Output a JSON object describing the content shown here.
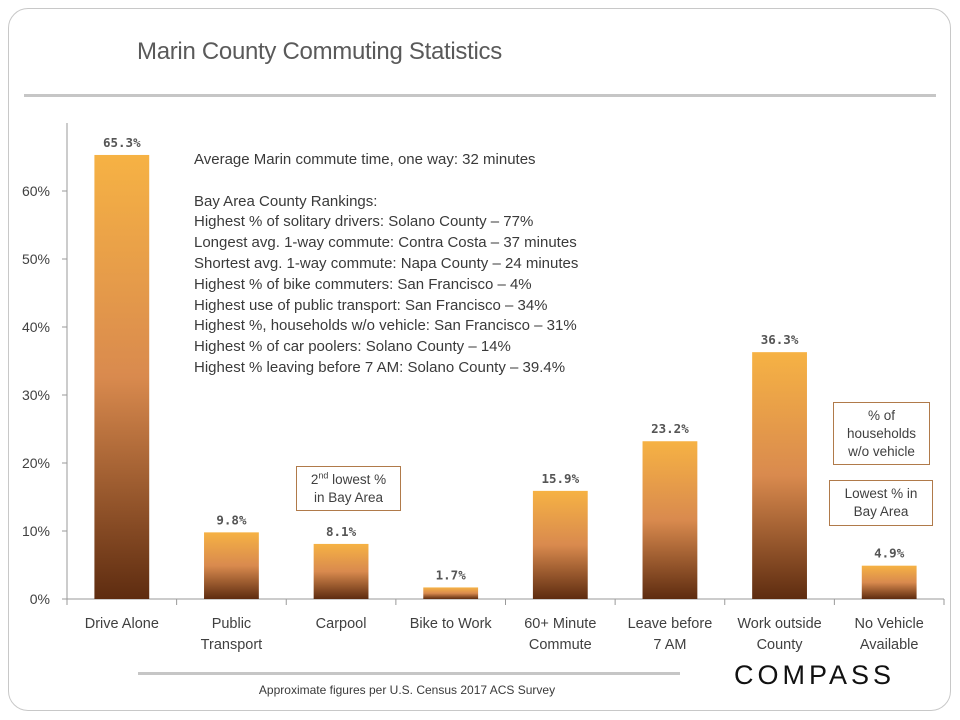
{
  "title": "Marin County Commuting Statistics",
  "chart_data": {
    "type": "bar",
    "categories": [
      [
        "Drive Alone"
      ],
      [
        "Public",
        "Transport"
      ],
      [
        "Carpool"
      ],
      [
        "Bike to Work"
      ],
      [
        "60+ Minute",
        "Commute"
      ],
      [
        "Leave before",
        "7 AM"
      ],
      [
        "Work outside",
        "County"
      ],
      [
        "No Vehicle",
        "Available"
      ]
    ],
    "values": [
      65.3,
      9.8,
      8.1,
      1.7,
      15.9,
      23.2,
      36.3,
      4.9
    ],
    "data_labels": [
      "65.3%",
      "9.8%",
      "8.1%",
      "1.7%",
      "15.9%",
      "23.2%",
      "36.3%",
      "4.9%"
    ],
    "ylim": [
      0,
      70
    ],
    "yticks": [
      0,
      10,
      20,
      30,
      40,
      50,
      60
    ],
    "ytick_labels": [
      "0%",
      "10%",
      "20%",
      "30%",
      "40%",
      "50%",
      "60%"
    ],
    "bar_color_top": "#f6b244",
    "bar_color_bottom": "#5e2c10"
  },
  "notes": {
    "avg_commute": "Average Marin commute time, one way: 32 minutes",
    "rankings_heading": "Bay Area County Rankings:",
    "rankings": [
      "Highest % of solitary drivers: Solano County – 77%",
      "Longest avg. 1-way commute: Contra Costa – 37 minutes",
      "Shortest avg. 1-way commute: Napa County – 24 minutes",
      "Highest % of bike commuters: San Francisco – 4%",
      "Highest use of public transport: San Francisco – 34%",
      "Highest %, households w/o vehicle: San Francisco – 31%",
      "Highest % of car poolers: Solano County – 14%",
      "Highest % leaving before 7 AM: Solano County – 39.4%"
    ]
  },
  "callouts": {
    "carpool_sup": "nd",
    "carpool_rank": "2",
    "carpool_line1": "lowest %",
    "carpool_line2": "in Bay Area",
    "households_line1": "% of",
    "households_line2": "households",
    "households_line3": "w/o vehicle",
    "lowest_line1": "Lowest % in",
    "lowest_line2": "Bay Area"
  },
  "footnote": "Approximate figures per U.S. Census 2017 ACS Survey",
  "logo": "COMPASS",
  "colors": {
    "callout_border": "#b07a4a",
    "rule": "#c6c6c6"
  }
}
